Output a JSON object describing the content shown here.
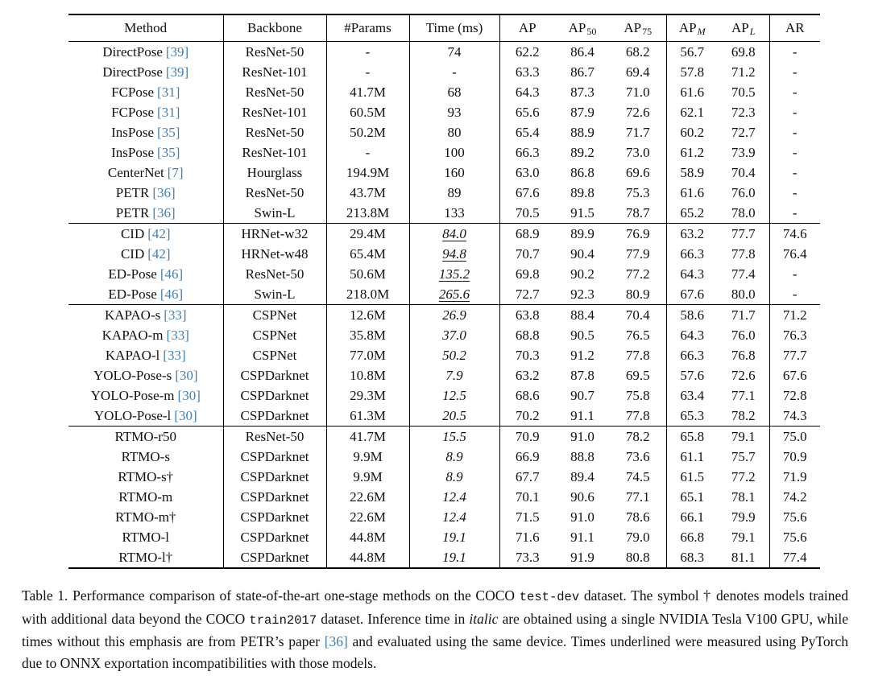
{
  "colors": {
    "cite": "#4080b5",
    "text": "#111111",
    "rule": "#000000",
    "background": "#ffffff"
  },
  "table": {
    "headers": [
      {
        "base": "Method"
      },
      {
        "base": "Backbone"
      },
      {
        "base": "#Params"
      },
      {
        "base": "Time (ms)"
      },
      {
        "base": "AP"
      },
      {
        "base": "AP",
        "sub": "50"
      },
      {
        "base": "AP",
        "sub": "75"
      },
      {
        "base": "AP",
        "sub": "M",
        "subItalic": true
      },
      {
        "base": "AP",
        "sub": "L",
        "subItalic": true
      },
      {
        "base": "AR"
      }
    ],
    "groups": [
      {
        "rows": [
          {
            "method": "DirectPose",
            "ref": "[39]",
            "backbone": "ResNet-50",
            "params": "-",
            "time": "74",
            "time_style": "plain",
            "ap": "62.2",
            "ap50": "86.4",
            "ap75": "68.2",
            "apm": "56.7",
            "apl": "69.8",
            "ar": "-"
          },
          {
            "method": "DirectPose",
            "ref": "[39]",
            "backbone": "ResNet-101",
            "params": "-",
            "time": "-",
            "time_style": "plain",
            "ap": "63.3",
            "ap50": "86.7",
            "ap75": "69.4",
            "apm": "57.8",
            "apl": "71.2",
            "ar": "-"
          },
          {
            "method": "FCPose",
            "ref": "[31]",
            "backbone": "ResNet-50",
            "params": "41.7M",
            "time": "68",
            "time_style": "plain",
            "ap": "64.3",
            "ap50": "87.3",
            "ap75": "71.0",
            "apm": "61.6",
            "apl": "70.5",
            "ar": "-"
          },
          {
            "method": "FCPose",
            "ref": "[31]",
            "backbone": "ResNet-101",
            "params": "60.5M",
            "time": "93",
            "time_style": "plain",
            "ap": "65.6",
            "ap50": "87.9",
            "ap75": "72.6",
            "apm": "62.1",
            "apl": "72.3",
            "ar": "-"
          },
          {
            "method": "InsPose",
            "ref": "[35]",
            "backbone": "ResNet-50",
            "params": "50.2M",
            "time": "80",
            "time_style": "plain",
            "ap": "65.4",
            "ap50": "88.9",
            "ap75": "71.7",
            "apm": "60.2",
            "apl": "72.7",
            "ar": "-"
          },
          {
            "method": "InsPose",
            "ref": "[35]",
            "backbone": "ResNet-101",
            "params": "-",
            "time": "100",
            "time_style": "plain",
            "ap": "66.3",
            "ap50": "89.2",
            "ap75": "73.0",
            "apm": "61.2",
            "apl": "73.9",
            "ar": "-"
          },
          {
            "method": "CenterNet",
            "ref": "[7]",
            "backbone": "Hourglass",
            "params": "194.9M",
            "time": "160",
            "time_style": "plain",
            "ap": "63.0",
            "ap50": "86.8",
            "ap75": "69.6",
            "apm": "58.9",
            "apl": "70.4",
            "ar": "-"
          },
          {
            "method": "PETR",
            "ref": "[36]",
            "backbone": "ResNet-50",
            "params": "43.7M",
            "time": "89",
            "time_style": "plain",
            "ap": "67.6",
            "ap50": "89.8",
            "ap75": "75.3",
            "apm": "61.6",
            "apl": "76.0",
            "ar": "-"
          },
          {
            "method": "PETR",
            "ref": "[36]",
            "backbone": "Swin-L",
            "params": "213.8M",
            "time": "133",
            "time_style": "plain",
            "ap": "70.5",
            "ap50": "91.5",
            "ap75": "78.7",
            "apm": "65.2",
            "apl": "78.0",
            "ar": "-"
          }
        ]
      },
      {
        "rows": [
          {
            "method": "CID",
            "ref": "[42]",
            "backbone": "HRNet-w32",
            "params": "29.4M",
            "time": "84.0",
            "time_style": "underline",
            "ap": "68.9",
            "ap50": "89.9",
            "ap75": "76.9",
            "apm": "63.2",
            "apl": "77.7",
            "ar": "74.6"
          },
          {
            "method": "CID",
            "ref": "[42]",
            "backbone": "HRNet-w48",
            "params": "65.4M",
            "time": "94.8",
            "time_style": "underline",
            "ap": "70.7",
            "ap50": "90.4",
            "ap75": "77.9",
            "apm": "66.3",
            "apl": "77.8",
            "ar": "76.4"
          },
          {
            "method": "ED-Pose",
            "ref": "[46]",
            "backbone": "ResNet-50",
            "params": "50.6M",
            "time": "135.2",
            "time_style": "underline",
            "ap": "69.8",
            "ap50": "90.2",
            "ap75": "77.2",
            "apm": "64.3",
            "apl": "77.4",
            "ar": "-"
          },
          {
            "method": "ED-Pose",
            "ref": "[46]",
            "backbone": "Swin-L",
            "params": "218.0M",
            "time": "265.6",
            "time_style": "underline",
            "ap": "72.7",
            "ap50": "92.3",
            "ap75": "80.9",
            "apm": "67.6",
            "apl": "80.0",
            "ar": "-"
          }
        ]
      },
      {
        "rows": [
          {
            "method": "KAPAO-s",
            "ref": "[33]",
            "backbone": "CSPNet",
            "params": "12.6M",
            "time": "26.9",
            "time_style": "italic",
            "ap": "63.8",
            "ap50": "88.4",
            "ap75": "70.4",
            "apm": "58.6",
            "apl": "71.7",
            "ar": "71.2"
          },
          {
            "method": "KAPAO-m",
            "ref": "[33]",
            "backbone": "CSPNet",
            "params": "35.8M",
            "time": "37.0",
            "time_style": "italic",
            "ap": "68.8",
            "ap50": "90.5",
            "ap75": "76.5",
            "apm": "64.3",
            "apl": "76.0",
            "ar": "76.3"
          },
          {
            "method": "KAPAO-l",
            "ref": "[33]",
            "backbone": "CSPNet",
            "params": "77.0M",
            "time": "50.2",
            "time_style": "italic",
            "ap": "70.3",
            "ap50": "91.2",
            "ap75": "77.8",
            "apm": "66.3",
            "apl": "76.8",
            "ar": "77.7"
          },
          {
            "method": "YOLO-Pose-s",
            "ref": "[30]",
            "backbone": "CSPDarknet",
            "params": "10.8M",
            "time": "7.9",
            "time_style": "italic",
            "ap": "63.2",
            "ap50": "87.8",
            "ap75": "69.5",
            "apm": "57.6",
            "apl": "72.6",
            "ar": "67.6"
          },
          {
            "method": "YOLO-Pose-m",
            "ref": "[30]",
            "backbone": "CSPDarknet",
            "params": "29.3M",
            "time": "12.5",
            "time_style": "italic",
            "ap": "68.6",
            "ap50": "90.7",
            "ap75": "75.8",
            "apm": "63.4",
            "apl": "77.1",
            "ar": "72.8"
          },
          {
            "method": "YOLO-Pose-l",
            "ref": "[30]",
            "backbone": "CSPDarknet",
            "params": "61.3M",
            "time": "20.5",
            "time_style": "italic",
            "ap": "70.2",
            "ap50": "91.1",
            "ap75": "77.8",
            "apm": "65.3",
            "apl": "78.2",
            "ar": "74.3"
          }
        ]
      },
      {
        "rows": [
          {
            "method": "RTMO-r50",
            "backbone": "ResNet-50",
            "params": "41.7M",
            "time": "15.5",
            "time_style": "italic",
            "ap": "70.9",
            "ap50": "91.0",
            "ap75": "78.2",
            "apm": "65.8",
            "apl": "79.1",
            "ar": "75.0"
          },
          {
            "method": "RTMO-s",
            "backbone": "CSPDarknet",
            "params": "9.9M",
            "time": "8.9",
            "time_style": "italic",
            "ap": "66.9",
            "ap50": "88.8",
            "ap75": "73.6",
            "apm": "61.1",
            "apl": "75.7",
            "ar": "70.9"
          },
          {
            "method": "RTMO-s†",
            "backbone": "CSPDarknet",
            "params": "9.9M",
            "time": "8.9",
            "time_style": "italic",
            "ap": "67.7",
            "ap50": "89.4",
            "ap75": "74.5",
            "apm": "61.5",
            "apl": "77.2",
            "ar": "71.9"
          },
          {
            "method": "RTMO-m",
            "backbone": "CSPDarknet",
            "params": "22.6M",
            "time": "12.4",
            "time_style": "italic",
            "ap": "70.1",
            "ap50": "90.6",
            "ap75": "77.1",
            "apm": "65.1",
            "apl": "78.1",
            "ar": "74.2"
          },
          {
            "method": "RTMO-m†",
            "backbone": "CSPDarknet",
            "params": "22.6M",
            "time": "12.4",
            "time_style": "italic",
            "ap": "71.5",
            "ap50": "91.0",
            "ap75": "78.6",
            "apm": "66.1",
            "apl": "79.9",
            "ar": "75.6"
          },
          {
            "method": "RTMO-l",
            "backbone": "CSPDarknet",
            "params": "44.8M",
            "time": "19.1",
            "time_style": "italic",
            "ap": "71.6",
            "ap50": "91.1",
            "ap75": "79.0",
            "apm": "66.8",
            "apl": "79.1",
            "ar": "75.6"
          },
          {
            "method": "RTMO-l†",
            "backbone": "CSPDarknet",
            "params": "44.8M",
            "time": "19.1",
            "time_style": "italic",
            "ap": "73.3",
            "ap50": "91.9",
            "ap75": "80.8",
            "apm": "68.3",
            "apl": "81.1",
            "ar": "77.4"
          }
        ]
      }
    ]
  },
  "caption": {
    "segments": [
      {
        "text": "Table 1. Performance comparison of state-of-the-art one-stage methods on the COCO ",
        "style": "normal"
      },
      {
        "text": "test-dev",
        "style": "mono"
      },
      {
        "text": " dataset. The symbol † denotes models trained with additional data beyond the COCO ",
        "style": "normal"
      },
      {
        "text": "train2017",
        "style": "mono"
      },
      {
        "text": " dataset. Inference time in ",
        "style": "normal"
      },
      {
        "text": "italic",
        "style": "italic"
      },
      {
        "text": " are obtained using a single NVIDIA Tesla V100 GPU, while times without this emphasis are from PETR’s paper ",
        "style": "normal"
      },
      {
        "text": "[36]",
        "style": "cite"
      },
      {
        "text": " and evaluated using the same device. Times underlined were measured using PyTorch due to ONNX exportation incompatibilities with those models.",
        "style": "normal"
      }
    ]
  }
}
